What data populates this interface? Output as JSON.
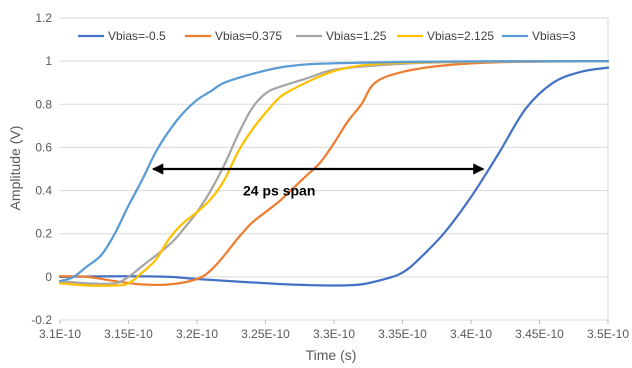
{
  "chart_data": {
    "type": "line",
    "title": "",
    "xlabel": "Time (s)",
    "ylabel": "Amplitude (V)",
    "xlim": [
      3.1e-10,
      3.5e-10
    ],
    "ylim": [
      -0.2,
      1.2
    ],
    "grid": "horizontal",
    "legend_position": "top",
    "x_ticks": [
      {
        "value": 3.1e-10,
        "label": "3.1E-10"
      },
      {
        "value": 3.15e-10,
        "label": "3.15E-10"
      },
      {
        "value": 3.2e-10,
        "label": "3.2E-10"
      },
      {
        "value": 3.25e-10,
        "label": "3.25E-10"
      },
      {
        "value": 3.3e-10,
        "label": "3.3E-10"
      },
      {
        "value": 3.35e-10,
        "label": "3.35E-10"
      },
      {
        "value": 3.4e-10,
        "label": "3.4E-10"
      },
      {
        "value": 3.45e-10,
        "label": "3.45E-10"
      },
      {
        "value": 3.5e-10,
        "label": "3.5E-10"
      }
    ],
    "y_ticks": [
      {
        "value": -0.2,
        "label": "-0.2"
      },
      {
        "value": 0,
        "label": "0"
      },
      {
        "value": 0.2,
        "label": "0.2"
      },
      {
        "value": 0.4,
        "label": "0.4"
      },
      {
        "value": 0.6,
        "label": "0.6"
      },
      {
        "value": 0.8,
        "label": "0.8"
      },
      {
        "value": 1,
        "label": "1"
      },
      {
        "value": 1.2,
        "label": "1.2"
      }
    ],
    "series": [
      {
        "name": "Vbias=-0.5",
        "color": "#4472C4",
        "x": [
          3.1e-10,
          3.15e-10,
          3.18e-10,
          3.2e-10,
          3.23e-10,
          3.26e-10,
          3.28e-10,
          3.3e-10,
          3.32e-10,
          3.34e-10,
          3.35e-10,
          3.36e-10,
          3.38e-10,
          3.4e-10,
          3.42e-10,
          3.44e-10,
          3.46e-10,
          3.48e-10,
          3.5e-10
        ],
        "y": [
          0.0,
          0.003,
          0.0,
          -0.01,
          -0.022,
          -0.033,
          -0.038,
          -0.04,
          -0.035,
          -0.005,
          0.02,
          0.07,
          0.2,
          0.37,
          0.57,
          0.78,
          0.9,
          0.95,
          0.97
        ]
      },
      {
        "name": "Vbias=0.375",
        "color": "#ED7D31",
        "x": [
          3.1e-10,
          3.12e-10,
          3.14e-10,
          3.16e-10,
          3.18e-10,
          3.2e-10,
          3.21e-10,
          3.22e-10,
          3.23e-10,
          3.24e-10,
          3.25e-10,
          3.26e-10,
          3.27e-10,
          3.28e-10,
          3.29e-10,
          3.3e-10,
          3.31e-10,
          3.32e-10,
          3.33e-10,
          3.35e-10,
          3.38e-10,
          3.42e-10,
          3.5e-10
        ],
        "y": [
          0.003,
          0.0,
          -0.02,
          -0.035,
          -0.035,
          -0.01,
          0.03,
          0.1,
          0.18,
          0.25,
          0.3,
          0.35,
          0.41,
          0.47,
          0.53,
          0.62,
          0.72,
          0.8,
          0.9,
          0.95,
          0.98,
          0.995,
          1.0
        ]
      },
      {
        "name": "Vbias=1.25",
        "color": "#A5A5A5",
        "x": [
          3.1e-10,
          3.12e-10,
          3.14e-10,
          3.15e-10,
          3.16e-10,
          3.18e-10,
          3.19e-10,
          3.2e-10,
          3.21e-10,
          3.22e-10,
          3.23e-10,
          3.24e-10,
          3.25e-10,
          3.26e-10,
          3.28e-10,
          3.3e-10,
          3.33e-10,
          3.38e-10,
          3.5e-10
        ],
        "y": [
          -0.02,
          -0.03,
          -0.03,
          0.0,
          0.05,
          0.15,
          0.22,
          0.3,
          0.4,
          0.52,
          0.66,
          0.78,
          0.85,
          0.88,
          0.92,
          0.96,
          0.98,
          0.995,
          1.0
        ]
      },
      {
        "name": "Vbias=2.125",
        "color": "#FFC000",
        "x": [
          3.1e-10,
          3.12e-10,
          3.14e-10,
          3.15e-10,
          3.16e-10,
          3.17e-10,
          3.18e-10,
          3.19e-10,
          3.2e-10,
          3.21e-10,
          3.22e-10,
          3.23e-10,
          3.24e-10,
          3.25e-10,
          3.26e-10,
          3.27e-10,
          3.29e-10,
          3.31e-10,
          3.34e-10,
          3.4e-10,
          3.5e-10
        ],
        "y": [
          -0.03,
          -0.04,
          -0.04,
          -0.03,
          0.02,
          0.08,
          0.18,
          0.25,
          0.3,
          0.36,
          0.45,
          0.58,
          0.68,
          0.76,
          0.83,
          0.87,
          0.93,
          0.97,
          0.99,
          0.998,
          1.0
        ]
      },
      {
        "name": "Vbias=3",
        "color": "#5B9BD5",
        "x": [
          3.1e-10,
          3.11e-10,
          3.12e-10,
          3.13e-10,
          3.14e-10,
          3.15e-10,
          3.16e-10,
          3.17e-10,
          3.18e-10,
          3.19e-10,
          3.2e-10,
          3.21e-10,
          3.22e-10,
          3.24e-10,
          3.26e-10,
          3.28e-10,
          3.3e-10,
          3.35e-10,
          3.4e-10,
          3.5e-10
        ],
        "y": [
          -0.02,
          0.0,
          0.05,
          0.1,
          0.2,
          0.33,
          0.45,
          0.58,
          0.68,
          0.76,
          0.82,
          0.86,
          0.9,
          0.94,
          0.97,
          0.985,
          0.99,
          0.996,
          0.999,
          1.0
        ]
      }
    ],
    "annotations": [
      {
        "text": "24 ps span",
        "arrow_x": [
          3.168e-10,
          3.409e-10
        ],
        "arrow_y": 0.5,
        "text_x": 3.26e-10,
        "text_y": 0.4
      }
    ]
  }
}
